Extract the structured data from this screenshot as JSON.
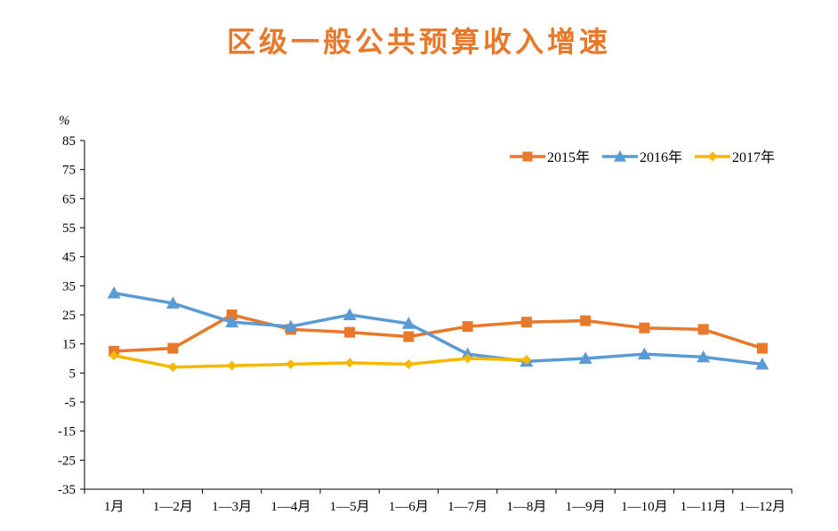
{
  "chart_data": {
    "type": "line",
    "title": "区级一般公共预算收入增速",
    "ylabel": "%",
    "ylim": [
      -35,
      85
    ],
    "yticks": [
      85,
      75,
      65,
      55,
      45,
      35,
      25,
      15,
      5,
      -5,
      -15,
      -25,
      -35
    ],
    "categories": [
      "1月",
      "1—2月",
      "1—3月",
      "1—4月",
      "1—5月",
      "1—6月",
      "1—7月",
      "1—8月",
      "1—9月",
      "1—10月",
      "1—11月",
      "1—12月"
    ],
    "legend_position": "top-right",
    "grid": false,
    "series": [
      {
        "name": "2015年",
        "color": "#e8782a",
        "marker": "square",
        "values": [
          12.5,
          13.5,
          25.0,
          20.0,
          19.0,
          17.5,
          21.0,
          22.5,
          23.0,
          20.5,
          20.0,
          13.5
        ]
      },
      {
        "name": "2016年",
        "color": "#5b9bd5",
        "marker": "triangle",
        "values": [
          32.5,
          29.0,
          22.5,
          21.0,
          25.0,
          22.0,
          11.5,
          9.0,
          10.0,
          11.5,
          10.5,
          8.0
        ]
      },
      {
        "name": "2017年",
        "color": "#f5b800",
        "marker": "diamond",
        "values": [
          11.0,
          7.0,
          7.5,
          8.0,
          8.5,
          8.0,
          10.0,
          9.5,
          null,
          null,
          null,
          null
        ]
      }
    ]
  }
}
